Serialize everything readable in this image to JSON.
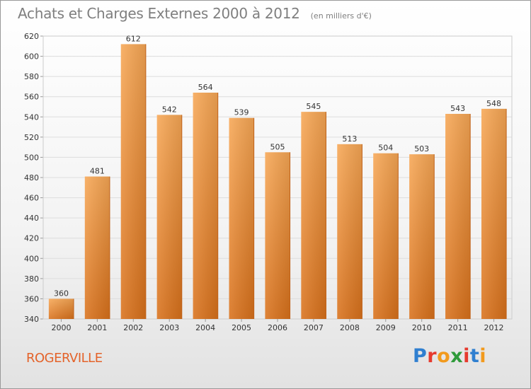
{
  "header": {
    "title": "Achats et Charges Externes 2000 à 2012",
    "subtitle": "(en milliers d'€)"
  },
  "place_label": "ROGERVILLE",
  "logo": {
    "text": "Proxiti",
    "letter_colors": [
      "#2f7fd0",
      "#e63a2e",
      "#f29a1d",
      "#2f9a3a",
      "#e63a2e",
      "#2f7fd0",
      "#f29a1d"
    ]
  },
  "colors": {
    "bar_top": "#f7a755",
    "bar_bottom": "#d9711b",
    "value_label": "#333333",
    "tick_label": "#333333",
    "grid": "#dddddd"
  },
  "chart_data": {
    "type": "bar",
    "categories": [
      "2000",
      "2001",
      "2002",
      "2003",
      "2004",
      "2005",
      "2006",
      "2007",
      "2008",
      "2009",
      "2010",
      "2011",
      "2012"
    ],
    "values": [
      360,
      481,
      612,
      542,
      564,
      539,
      505,
      545,
      513,
      504,
      503,
      543,
      548
    ],
    "ylim": [
      340,
      620
    ],
    "yticks": [
      340,
      360,
      380,
      400,
      420,
      440,
      460,
      480,
      500,
      520,
      540,
      560,
      580,
      600,
      620
    ],
    "grid": true,
    "title": "Achats et Charges Externes 2000 à 2012",
    "xlabel": "",
    "ylabel": ""
  }
}
